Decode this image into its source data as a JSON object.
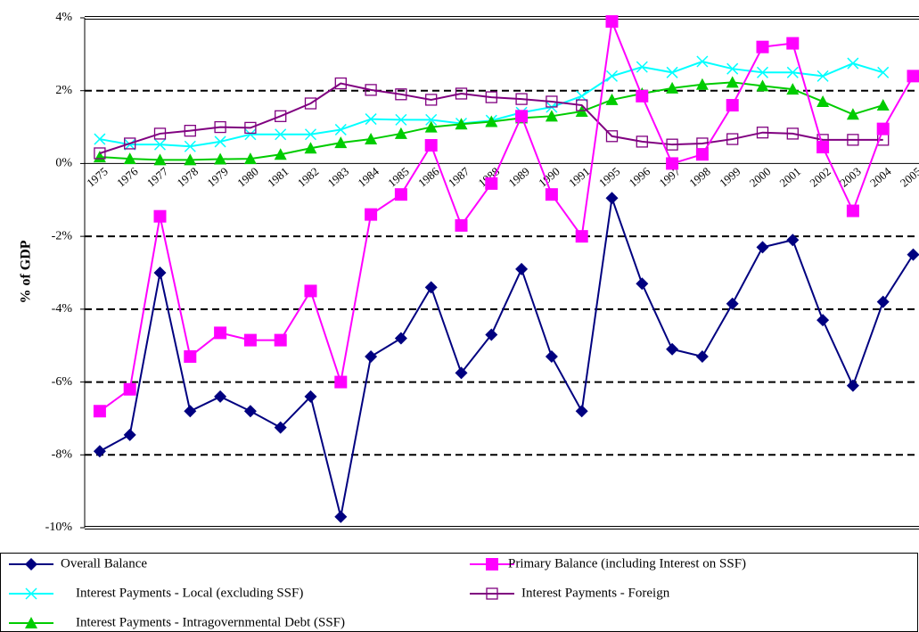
{
  "chart_data": {
    "type": "line",
    "ylabel": "% of GDP",
    "categories": [
      "1975",
      "1976",
      "1977",
      "1978",
      "1979",
      "1980",
      "1981",
      "1982",
      "1983",
      "1984",
      "1985",
      "1986",
      "1987",
      "1988",
      "1989",
      "1990",
      "1991",
      "1995",
      "1996",
      "1997",
      "1998",
      "1999",
      "2000",
      "2001",
      "2002",
      "2003",
      "2004",
      "2005"
    ],
    "ylim": [
      -10,
      4
    ],
    "yticks": [
      {
        "value": 4,
        "label": "4%"
      },
      {
        "value": 2,
        "label": "2%"
      },
      {
        "value": 0,
        "label": "0%"
      },
      {
        "value": -2,
        "label": "-2%"
      },
      {
        "value": -4,
        "label": "-4%"
      },
      {
        "value": -6,
        "label": "-6%"
      },
      {
        "value": -8,
        "label": "-8%"
      },
      {
        "value": -10,
        "label": "-10%"
      }
    ],
    "grid": true,
    "legend": "bottom",
    "series": [
      {
        "name": "Overall Balance",
        "color": "#000080",
        "marker": "diamond",
        "values": [
          -7.9,
          -7.45,
          -3.0,
          -6.8,
          -6.4,
          -6.8,
          -7.25,
          -6.4,
          -9.7,
          -5.3,
          -4.8,
          -3.4,
          -5.75,
          -4.7,
          -2.9,
          -5.3,
          -6.8,
          -0.95,
          -3.3,
          -5.1,
          -5.3,
          -3.85,
          -2.3,
          -2.1,
          -4.3,
          -6.1,
          -3.8,
          -2.5
        ]
      },
      {
        "name": "Primary Balance (including Interest on SSF)",
        "color": "#ff00ff",
        "marker": "square",
        "values": [
          -6.8,
          -6.2,
          -1.45,
          -5.3,
          -4.65,
          -4.85,
          -4.85,
          -3.5,
          -6.0,
          -1.4,
          -0.85,
          0.5,
          -1.7,
          -0.55,
          1.3,
          -0.85,
          -2.0,
          3.9,
          1.85,
          0.0,
          0.25,
          1.6,
          3.2,
          3.3,
          0.45,
          -1.3,
          0.95,
          2.4
        ]
      },
      {
        "name": "Interest Payments - Local (excluding SSF)",
        "color": "#00ffff",
        "marker": "x",
        "values": [
          0.67,
          0.52,
          0.52,
          0.47,
          0.6,
          0.8,
          0.8,
          0.8,
          0.93,
          1.22,
          1.2,
          1.2,
          1.1,
          1.18,
          1.4,
          1.55,
          1.85,
          2.4,
          2.65,
          2.5,
          2.8,
          2.6,
          2.5,
          2.5,
          2.4,
          2.75,
          2.5,
          null
        ]
      },
      {
        "name": "Interest Payments - Foreign",
        "color": "#800080",
        "marker": "open-square",
        "values": [
          0.28,
          0.55,
          0.82,
          0.9,
          1.0,
          0.98,
          1.3,
          1.65,
          2.2,
          2.02,
          1.9,
          1.75,
          1.92,
          1.82,
          1.77,
          1.7,
          1.6,
          0.75,
          0.6,
          0.52,
          0.55,
          0.67,
          0.85,
          0.82,
          0.65,
          0.65,
          0.65,
          null
        ]
      },
      {
        "name": "Interest Payments - Intragovernmental Debt (SSF)",
        "color": "#00cc00",
        "marker": "triangle",
        "values": [
          0.18,
          0.13,
          0.1,
          0.1,
          0.12,
          0.13,
          0.25,
          0.42,
          0.57,
          0.67,
          0.82,
          1.0,
          1.08,
          1.15,
          1.25,
          1.3,
          1.43,
          1.75,
          1.92,
          2.07,
          2.17,
          2.23,
          2.13,
          2.04,
          1.7,
          1.35,
          1.6,
          null
        ]
      }
    ]
  }
}
